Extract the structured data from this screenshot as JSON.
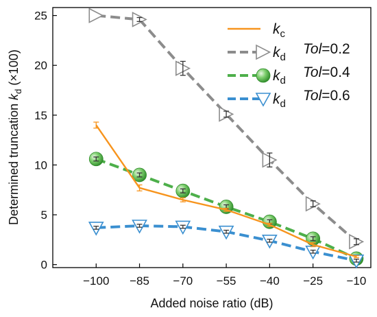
{
  "chart_data": {
    "type": "line",
    "xlabel": "Added noise ratio (dB)",
    "ylabel_main": "Determined truncation ",
    "ylabel_var": "k",
    "ylabel_sub": "d",
    "ylabel_unit": " (×100)",
    "x": [
      -100,
      -85,
      -70,
      -55,
      -40,
      -25,
      -10
    ],
    "x_tick_labels": [
      "−100",
      "−85",
      "−70",
      "−55",
      "−40",
      "−25",
      "−10"
    ],
    "y_ticks": [
      0,
      5,
      10,
      15,
      20,
      25
    ],
    "xlim": [
      -115,
      -5
    ],
    "ylim": [
      -0.3,
      25.8
    ],
    "legend_position": "top-right",
    "series": [
      {
        "name_var": "k",
        "name_sub": "c",
        "tol_label": "",
        "tol_value": "",
        "color": "#f7941d",
        "style": "solid",
        "marker": "bar",
        "values": [
          14.0,
          7.7,
          6.5,
          5.5,
          4.0,
          2.0,
          0.8
        ],
        "errors": [
          0.3,
          0.3,
          0.2,
          0.15,
          0.15,
          0.2,
          0.1
        ]
      },
      {
        "name_var": "k",
        "name_sub": "d",
        "tol_label": "Tol",
        "tol_value": "=0.2",
        "color": "#8c8c8c",
        "style": "dashed",
        "marker": "triangle-right",
        "values": [
          25.0,
          24.6,
          19.7,
          15.1,
          10.5,
          6.1,
          2.3
        ],
        "errors": [
          0,
          0.2,
          0.7,
          0.3,
          0.7,
          0.3,
          0.3
        ]
      },
      {
        "name_var": "k",
        "name_sub": "d",
        "tol_label": "Tol",
        "tol_value": "=0.4",
        "color": "#4daf4a",
        "style": "dashed",
        "marker": "sphere",
        "values": [
          10.6,
          9.0,
          7.4,
          5.8,
          4.3,
          2.6,
          0.6
        ],
        "errors": [
          0.2,
          0.2,
          0.2,
          0.2,
          0.2,
          0.2,
          0.2
        ]
      },
      {
        "name_var": "k",
        "name_sub": "d",
        "tol_label": "Tol",
        "tol_value": "=0.6",
        "color": "#3a8fd0",
        "style": "dashed",
        "marker": "triangle-down",
        "values": [
          3.7,
          3.9,
          3.8,
          3.3,
          2.4,
          1.3,
          0.4
        ],
        "errors": [
          0.15,
          0.15,
          0.15,
          0.15,
          0.15,
          0.15,
          0.15
        ]
      }
    ]
  }
}
